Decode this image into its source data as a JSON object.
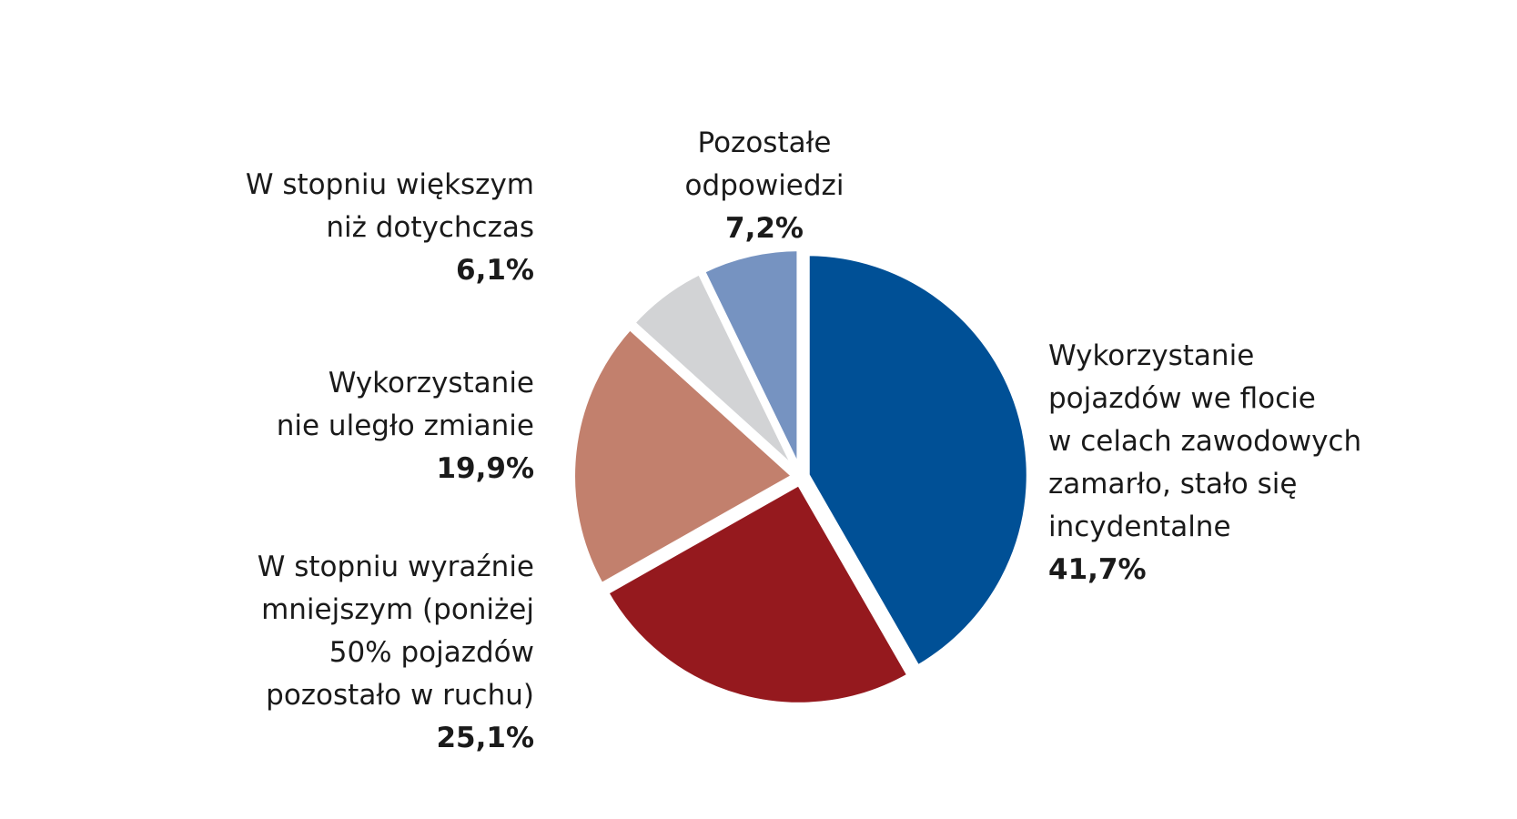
{
  "chart_data": {
    "type": "pie",
    "title": "",
    "start_angle": "top, clockwise",
    "slices": [
      {
        "label_lines": [
          "Wykorzystanie",
          "pojazdów we flocie",
          "w celach zawodowych",
          "zamarło, stało się",
          "incydentalne"
        ],
        "value": 41.7,
        "value_label": "41,7%",
        "color": "#005096"
      },
      {
        "label_lines": [
          "W stopniu wyraźnie",
          "mniejszym (poniżej",
          "50% pojazdów",
          "pozostało w ruchu)"
        ],
        "value": 25.1,
        "value_label": "25,1%",
        "color": "#95191e"
      },
      {
        "label_lines": [
          "Wykorzystanie",
          "nie uległo zmianie"
        ],
        "value": 19.9,
        "value_label": "19,9%",
        "color": "#c2806d"
      },
      {
        "label_lines": [
          "W stopniu większym",
          "niż dotychczas"
        ],
        "value": 6.1,
        "value_label": "6,1%",
        "color": "#d2d3d5"
      },
      {
        "label_lines": [
          "Pozostałe",
          "odpowiedzi"
        ],
        "value": 7.2,
        "value_label": "7,2%",
        "color": "#7693c1"
      }
    ]
  }
}
